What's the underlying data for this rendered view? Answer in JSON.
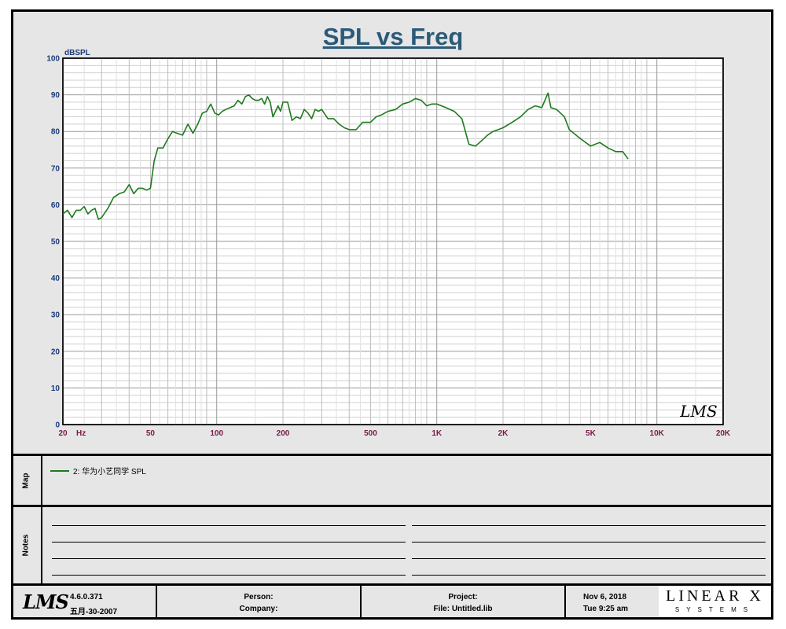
{
  "chart_data": {
    "type": "line",
    "title": "SPL vs Freq",
    "ylabel": "dBSPL",
    "xunit": "Hz",
    "xscale": "log",
    "xlim": [
      20,
      20000
    ],
    "ylim": [
      0,
      100
    ],
    "yticks": [
      0,
      10,
      20,
      30,
      40,
      50,
      60,
      70,
      80,
      90,
      100
    ],
    "xticks": [
      {
        "value": 20,
        "label": "20"
      },
      {
        "value": 50,
        "label": "50"
      },
      {
        "value": 100,
        "label": "100"
      },
      {
        "value": 200,
        "label": "200"
      },
      {
        "value": 500,
        "label": "500"
      },
      {
        "value": 1000,
        "label": "1K"
      },
      {
        "value": 2000,
        "label": "2K"
      },
      {
        "value": 5000,
        "label": "5K"
      },
      {
        "value": 10000,
        "label": "10K"
      },
      {
        "value": 20000,
        "label": "20K"
      }
    ],
    "grid": true,
    "colors": {
      "line": "#1e7a1e",
      "title": "#2a5a78",
      "axis_y": "#1a3a7a",
      "axis_x": "#7a1a4a"
    },
    "series": [
      {
        "name": "2: 华为小艺同学 SPL",
        "points": [
          [
            20,
            57.5
          ],
          [
            21,
            58.5
          ],
          [
            22,
            56.5
          ],
          [
            23,
            58.5
          ],
          [
            24,
            58.5
          ],
          [
            25,
            59.5
          ],
          [
            26,
            57.5
          ],
          [
            27,
            58.5
          ],
          [
            28,
            59
          ],
          [
            29,
            56
          ],
          [
            30,
            56.5
          ],
          [
            32,
            59
          ],
          [
            34,
            62
          ],
          [
            36,
            63
          ],
          [
            38,
            63.5
          ],
          [
            40,
            65.5
          ],
          [
            42,
            63
          ],
          [
            44,
            64.5
          ],
          [
            46,
            64.5
          ],
          [
            48,
            64
          ],
          [
            50,
            64.5
          ],
          [
            52,
            72
          ],
          [
            54,
            75.5
          ],
          [
            57,
            75.5
          ],
          [
            60,
            78
          ],
          [
            63,
            80
          ],
          [
            66,
            79.5
          ],
          [
            70,
            79
          ],
          [
            74,
            82
          ],
          [
            78,
            79.5
          ],
          [
            82,
            82
          ],
          [
            86,
            85
          ],
          [
            90,
            85.5
          ],
          [
            94,
            87.5
          ],
          [
            98,
            85
          ],
          [
            102,
            84.5
          ],
          [
            106,
            85.5
          ],
          [
            110,
            86
          ],
          [
            115,
            86.5
          ],
          [
            120,
            87
          ],
          [
            125,
            88.5
          ],
          [
            130,
            87.5
          ],
          [
            135,
            89.5
          ],
          [
            140,
            90
          ],
          [
            145,
            89
          ],
          [
            150,
            88.5
          ],
          [
            155,
            88.5
          ],
          [
            160,
            89
          ],
          [
            165,
            87.5
          ],
          [
            170,
            89.5
          ],
          [
            175,
            88
          ],
          [
            180,
            84
          ],
          [
            190,
            87
          ],
          [
            195,
            85.5
          ],
          [
            200,
            88
          ],
          [
            210,
            88
          ],
          [
            220,
            83
          ],
          [
            230,
            84
          ],
          [
            240,
            83.5
          ],
          [
            250,
            86
          ],
          [
            260,
            85
          ],
          [
            270,
            83.5
          ],
          [
            280,
            86
          ],
          [
            290,
            85.5
          ],
          [
            300,
            86
          ],
          [
            320,
            83.5
          ],
          [
            340,
            83.5
          ],
          [
            360,
            82
          ],
          [
            380,
            81
          ],
          [
            400,
            80.5
          ],
          [
            430,
            80.5
          ],
          [
            460,
            82.5
          ],
          [
            500,
            82.5
          ],
          [
            530,
            84
          ],
          [
            560,
            84.5
          ],
          [
            600,
            85.5
          ],
          [
            650,
            86
          ],
          [
            700,
            87.5
          ],
          [
            750,
            88
          ],
          [
            800,
            89
          ],
          [
            850,
            88.5
          ],
          [
            900,
            87
          ],
          [
            950,
            87.5
          ],
          [
            1000,
            87.5
          ],
          [
            1100,
            86.5
          ],
          [
            1200,
            85.5
          ],
          [
            1300,
            83.5
          ],
          [
            1400,
            76.5
          ],
          [
            1500,
            76
          ],
          [
            1600,
            77.5
          ],
          [
            1700,
            79
          ],
          [
            1800,
            80
          ],
          [
            1900,
            80.5
          ],
          [
            2000,
            81
          ],
          [
            2200,
            82.5
          ],
          [
            2400,
            84
          ],
          [
            2600,
            86
          ],
          [
            2800,
            87
          ],
          [
            3000,
            86.5
          ],
          [
            3100,
            88.5
          ],
          [
            3200,
            90.5
          ],
          [
            3300,
            86.5
          ],
          [
            3500,
            86
          ],
          [
            3800,
            84
          ],
          [
            4000,
            80.5
          ],
          [
            4500,
            78
          ],
          [
            5000,
            76
          ],
          [
            5500,
            77
          ],
          [
            6000,
            75.5
          ],
          [
            6500,
            74.5
          ],
          [
            7000,
            74.5
          ],
          [
            7400,
            72.5
          ]
        ]
      }
    ],
    "annotations": [
      "LMS"
    ]
  },
  "panels": {
    "map_label": "Map",
    "notes_label": "Notes",
    "legend_entry": "2: 华为小艺同学 SPL"
  },
  "footer": {
    "logo": "LMS",
    "version": "4.6.0.371",
    "version_date": "五月-30-2007",
    "person_label": "Person:",
    "company_label": "Company:",
    "project_label": "Project:",
    "file_label": "File: Untitled.lib",
    "date": "Nov  6, 2018",
    "time": "Tue  9:25 am",
    "brand": "LINEAR X",
    "brand_sub": "SYSTEMS"
  }
}
